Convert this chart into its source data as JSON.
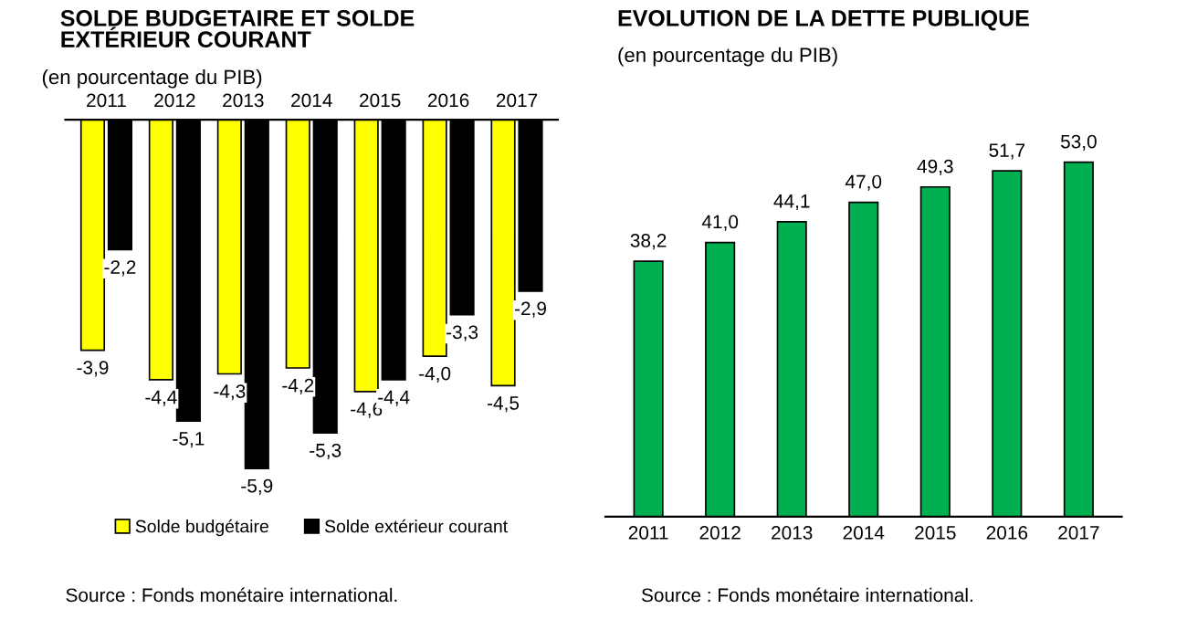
{
  "chart_data": [
    {
      "type": "bar",
      "title": "SOLDE BUDGETAIRE ET SOLDE EXTÉRIEUR COURANT",
      "subtitle": "(en pourcentage du PIB)",
      "categories": [
        "2011",
        "2012",
        "2013",
        "2014",
        "2015",
        "2016",
        "2017"
      ],
      "series": [
        {
          "name": "Solde budgétaire",
          "color": "#ffff00",
          "values": [
            -3.9,
            -4.4,
            -4.3,
            -4.2,
            -4.6,
            -4.0,
            -4.5
          ],
          "value_labels": [
            "-3,9",
            "-4,4",
            "-4,3",
            "-4,2",
            "-4,6",
            "-4,0",
            "-4,5"
          ]
        },
        {
          "name": "Solde extérieur courant",
          "color": "#000000",
          "values": [
            -2.2,
            -5.1,
            -5.9,
            -5.3,
            -4.4,
            -3.3,
            -2.9
          ],
          "value_labels": [
            "-2,2",
            "-5,1",
            "-5,9",
            "-5,3",
            "-4,4",
            "-3,3",
            "-2,9"
          ]
        }
      ],
      "legend": "bottom",
      "grid": false,
      "annotations": [
        "Source : Fonds monétaire international."
      ]
    },
    {
      "type": "bar",
      "title": "EVOLUTION DE LA DETTE PUBLIQUE",
      "subtitle": "(en pourcentage du PIB)",
      "categories": [
        "2011",
        "2012",
        "2013",
        "2014",
        "2015",
        "2016",
        "2017"
      ],
      "series": [
        {
          "color": "#00b050",
          "values": [
            38.2,
            41.0,
            44.1,
            47.0,
            49.3,
            51.7,
            53.0
          ],
          "value_labels": [
            "38,2",
            "41,0",
            "44,1",
            "47,0",
            "49,3",
            "51,7",
            "53,0"
          ]
        }
      ],
      "grid": false,
      "annotations": [
        "Source : Fonds monétaire international."
      ]
    }
  ]
}
